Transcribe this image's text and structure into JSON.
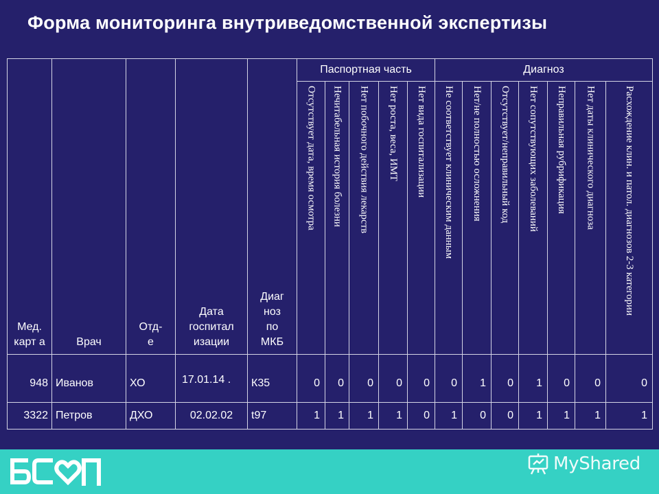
{
  "title": "Форма мониторинга внутриведомственной экспертизы",
  "table": {
    "headers": {
      "med_card": "Мед. карт а",
      "doctor": "Врач",
      "department": "Отд- е",
      "admission_date": "Дата госпитал изации",
      "diagnosis_mkb": "Диаг ноз по МКБ",
      "passport_group": "Паспортная часть",
      "diagnosis_group": "Диагноз"
    },
    "criteria": [
      "Отсутствует дата, время осмотра",
      "Нечитабельная история болезни",
      "Нет побочного действия лекарств",
      "Нет роста, веса, ИМТ",
      "Нет вида госпитализации",
      "Не соответствует клиническим данным",
      "Нет/не полностью осложнения",
      "Отсутствует/неправильный код",
      "Нет сопутствующих заболеваний",
      "Неправильная рубрификация",
      "Нет даты клинического диагноза",
      "Расхождение клин. и патол. диагнозов 2-3 категории"
    ],
    "rows": [
      {
        "med_card": "948",
        "doctor": "Иванов",
        "department": "ХО",
        "date": "17.01.14 .",
        "mkb": "К35",
        "values": [
          "0",
          "0",
          "0",
          "0",
          "0",
          "0",
          "1",
          "0",
          "1",
          "0",
          "0",
          "0"
        ]
      },
      {
        "med_card": "3322",
        "doctor": "Петров",
        "department": "ДХО",
        "date": "02.02.02",
        "mkb": "t97",
        "values": [
          "1",
          "1",
          "1",
          "1",
          "0",
          "1",
          "0",
          "0",
          "1",
          "1",
          "1",
          "1"
        ]
      }
    ]
  },
  "footer": {
    "watermark_text": "MyShared",
    "band_color": "#35d1c4",
    "background_color": "#25206b"
  }
}
